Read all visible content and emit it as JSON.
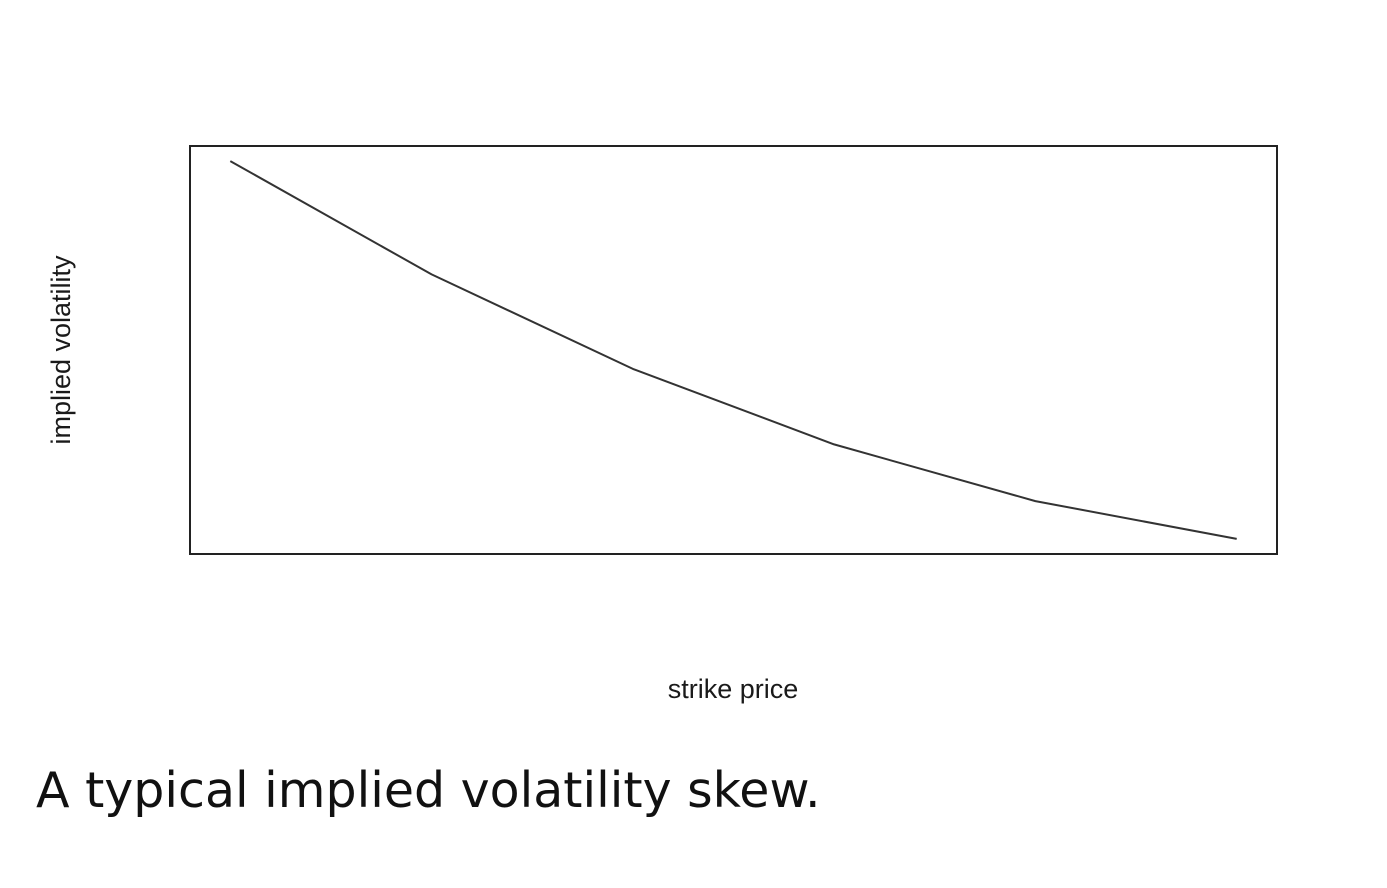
{
  "chart_data": {
    "type": "line",
    "title": "",
    "xlabel": "strike price",
    "ylabel": "implied volatility",
    "x": [
      0,
      1,
      2,
      3,
      4,
      5
    ],
    "series": [
      {
        "values": [
          1.0,
          0.7,
          0.45,
          0.25,
          0.1,
          0.0
        ]
      }
    ],
    "xlim": [
      -0.2,
      5.2
    ],
    "ylim": [
      -0.04,
      1.04
    ],
    "grid": false,
    "legend": "none",
    "line_color": "#333333"
  },
  "caption": "A typical implied volatility skew."
}
